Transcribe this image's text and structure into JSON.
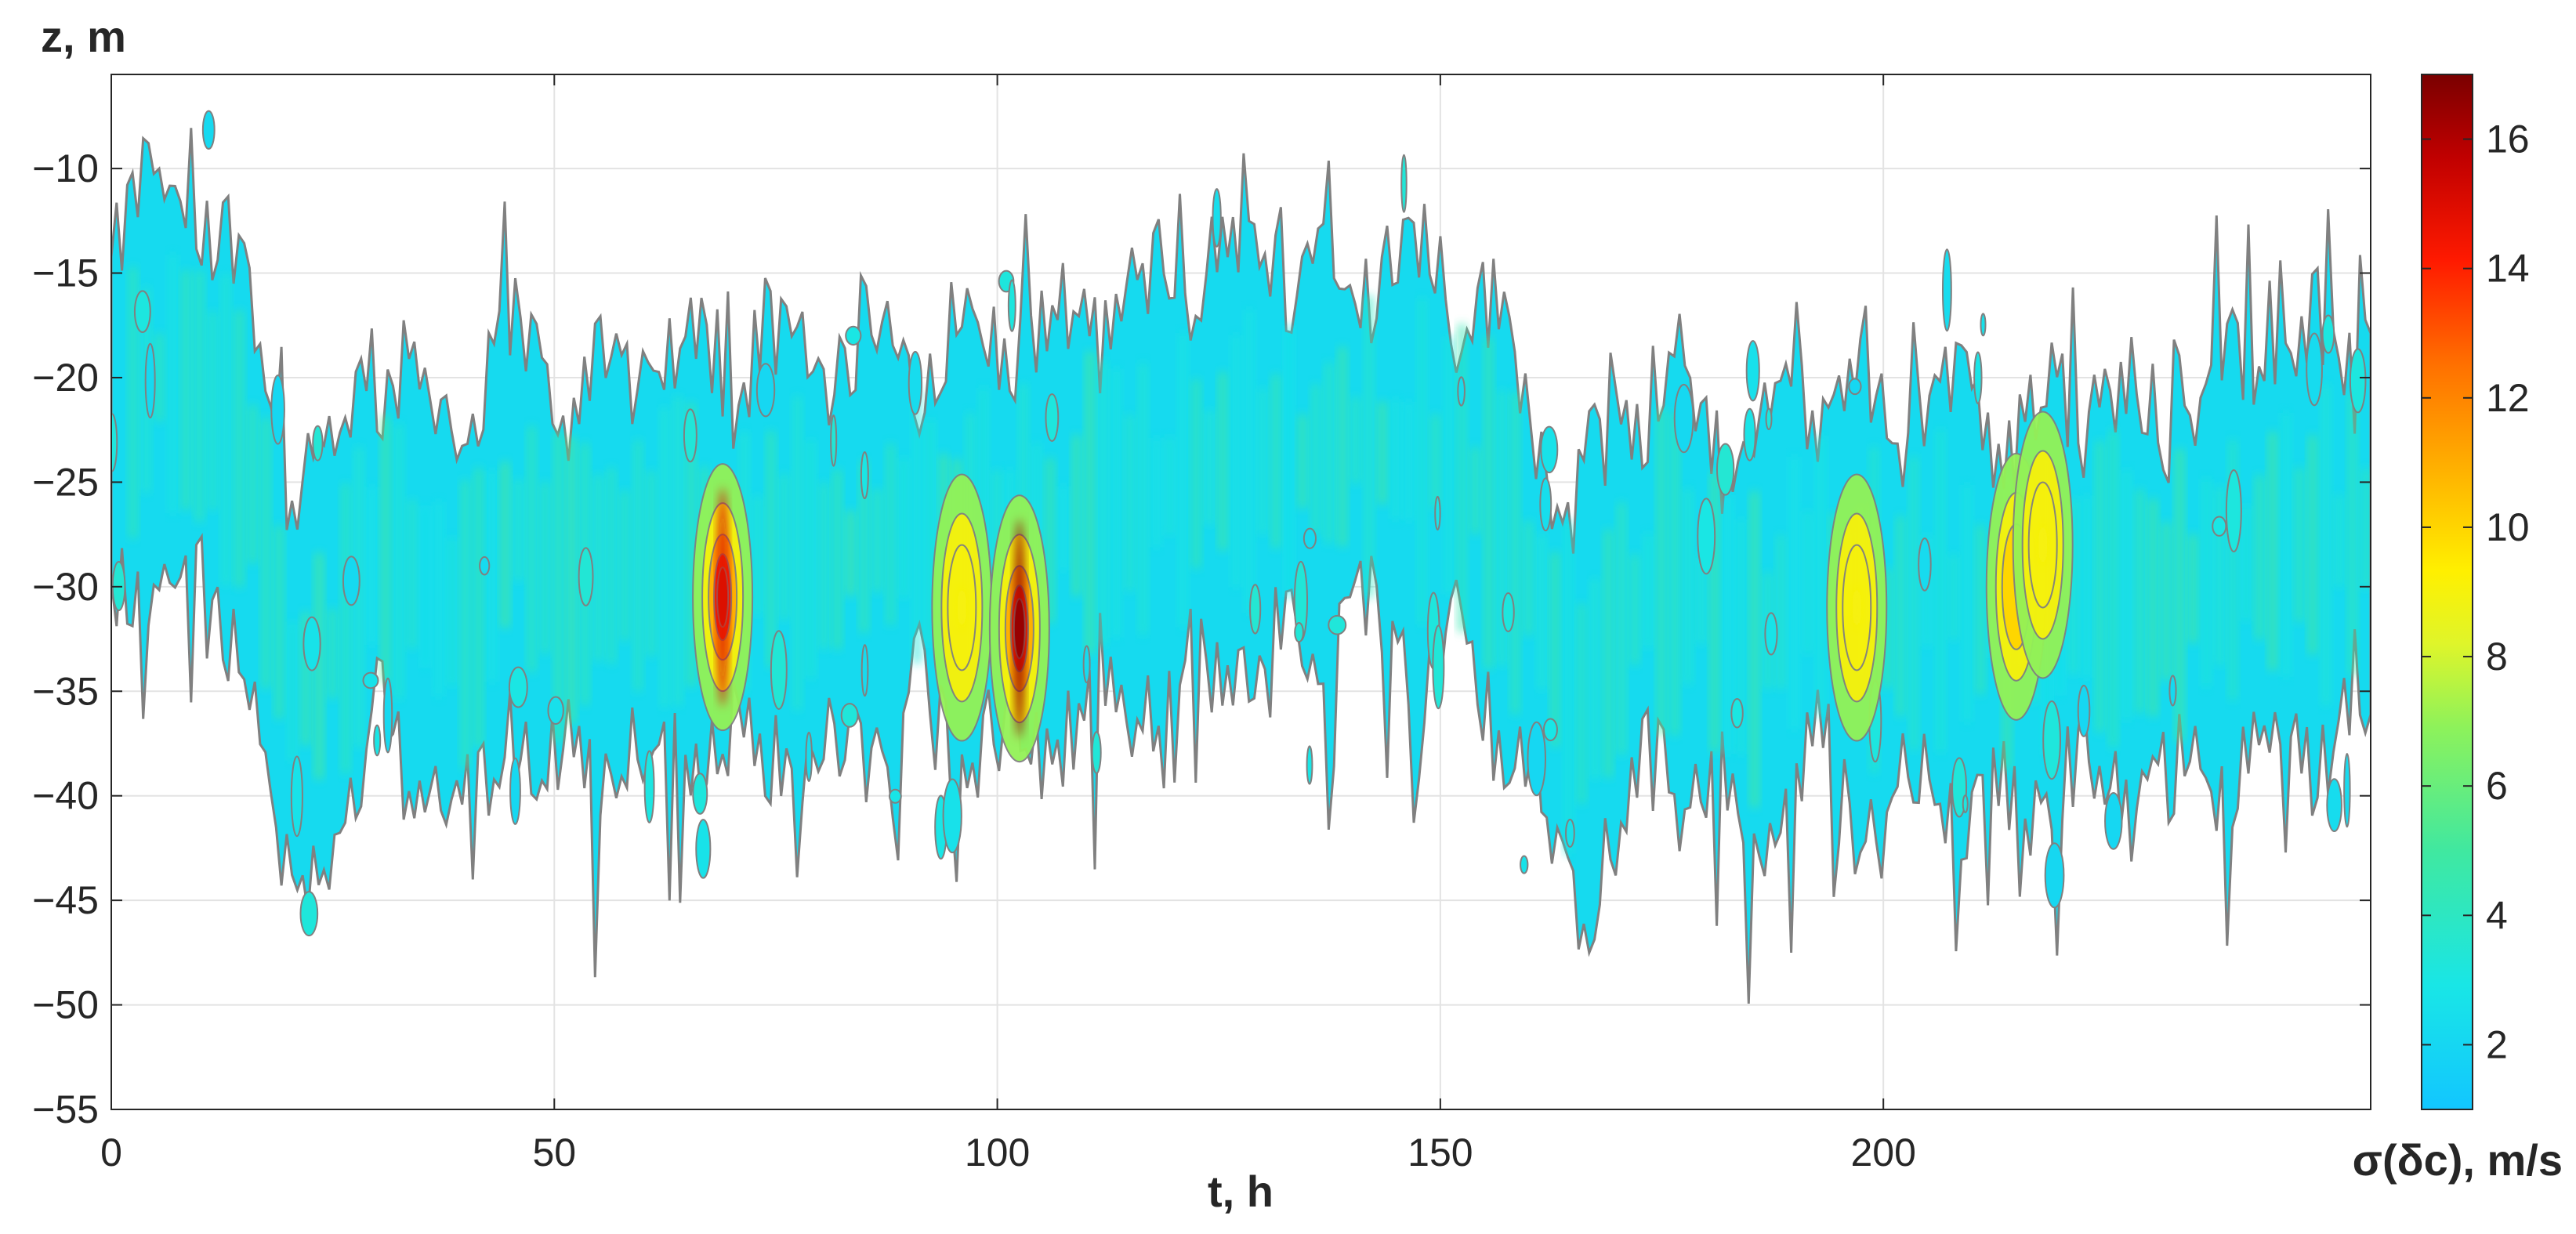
{
  "chart_data": {
    "type": "heatmap",
    "title": "",
    "xlabel": "t, h",
    "ylabel": "z, m",
    "colorbar_label": "σ(δc), m/s",
    "xlim": [
      0,
      255
    ],
    "ylim": [
      -55,
      -5.5
    ],
    "x_ticks": [
      0,
      50,
      100,
      150,
      200
    ],
    "y_ticks": [
      -10,
      -15,
      -20,
      -25,
      -30,
      -35,
      -40,
      -45,
      -50,
      -55
    ],
    "colorbar_range": [
      1,
      17
    ],
    "colorbar_ticks": [
      2,
      4,
      6,
      8,
      10,
      12,
      14,
      16
    ],
    "colormap": "jet",
    "grid": true,
    "contour_line_color": "#808080",
    "layer_center_depth": [
      [
        0,
        -22
      ],
      [
        5,
        -20
      ],
      [
        10,
        -21
      ],
      [
        15,
        -24
      ],
      [
        20,
        -35
      ],
      [
        25,
        -33
      ],
      [
        30,
        -28
      ],
      [
        35,
        -30
      ],
      [
        40,
        -32
      ],
      [
        45,
        -27
      ],
      [
        50,
        -30
      ],
      [
        55,
        -29
      ],
      [
        60,
        -29
      ],
      [
        65,
        -28
      ],
      [
        70,
        -29
      ],
      [
        75,
        -28
      ],
      [
        80,
        -29
      ],
      [
        85,
        -28
      ],
      [
        90,
        -27
      ],
      [
        95,
        -28
      ],
      [
        100,
        -27
      ],
      [
        105,
        -28
      ],
      [
        110,
        -26
      ],
      [
        115,
        -26
      ],
      [
        120,
        -25
      ],
      [
        125,
        -24
      ],
      [
        130,
        -24
      ],
      [
        135,
        -24
      ],
      [
        140,
        -23
      ],
      [
        145,
        -24
      ],
      [
        150,
        -24
      ],
      [
        155,
        -26
      ],
      [
        160,
        -30
      ],
      [
        165,
        -36
      ],
      [
        170,
        -32
      ],
      [
        175,
        -29
      ],
      [
        180,
        -31
      ],
      [
        185,
        -33
      ],
      [
        190,
        -30
      ],
      [
        195,
        -29
      ],
      [
        200,
        -32
      ],
      [
        205,
        -30
      ],
      [
        210,
        -31
      ],
      [
        215,
        -32
      ],
      [
        220,
        -30
      ],
      [
        225,
        -30
      ],
      [
        230,
        -31
      ],
      [
        235,
        -30
      ],
      [
        240,
        -29
      ],
      [
        245,
        -28
      ],
      [
        250,
        -28
      ],
      [
        255,
        -27
      ]
    ],
    "hotspots": [
      {
        "t": 69,
        "z": -30.5,
        "value": 15
      },
      {
        "t": 96,
        "z": -31,
        "value": 9
      },
      {
        "t": 102.5,
        "z": -32,
        "value": 16.5
      },
      {
        "t": 197,
        "z": -31,
        "value": 9
      },
      {
        "t": 215,
        "z": -30,
        "value": 10
      },
      {
        "t": 218,
        "z": -28,
        "value": 9
      }
    ]
  }
}
